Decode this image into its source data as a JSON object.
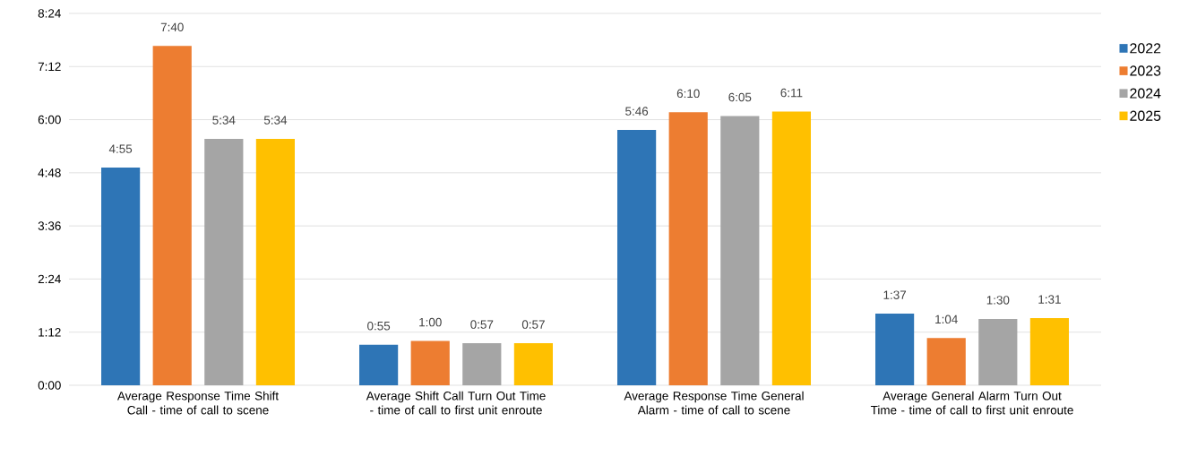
{
  "chart_data": {
    "type": "bar",
    "categories": [
      "Average Response Time Shift Call - time of call to scene",
      "Average Shift Call Turn Out Time - time of call to first unit enroute",
      "Average Response Time General Alarm - time of call to scene",
      "Average General Alarm Turn Out Time - time of call to first unit enroute"
    ],
    "series": [
      {
        "name": "2022",
        "color": "#2e75b6",
        "values": [
          295,
          55,
          346,
          97
        ],
        "value_labels": [
          "4:55",
          "0:55",
          "5:46",
          "1:37"
        ]
      },
      {
        "name": "2023",
        "color": "#ed7d31",
        "values": [
          460,
          60,
          370,
          64
        ],
        "value_labels": [
          "7:40",
          "1:00",
          "6:10",
          "1:04"
        ]
      },
      {
        "name": "2024",
        "color": "#a5a5a5",
        "values": [
          334,
          57,
          365,
          90
        ],
        "value_labels": [
          "5:34",
          "0:57",
          "6:05",
          "1:30"
        ]
      },
      {
        "name": "2025",
        "color": "#ffc000",
        "values": [
          334,
          57,
          371,
          91
        ],
        "value_labels": [
          "5:34",
          "0:57",
          "6:11",
          "1:31"
        ]
      }
    ],
    "ylim": [
      0,
      504
    ],
    "yticks": [
      {
        "value": 0,
        "label": "0:00"
      },
      {
        "value": 72,
        "label": "1:12"
      },
      {
        "value": 144,
        "label": "2:24"
      },
      {
        "value": 216,
        "label": "3:36"
      },
      {
        "value": 288,
        "label": "4:48"
      },
      {
        "value": 360,
        "label": "6:00"
      },
      {
        "value": 432,
        "label": "7:12"
      },
      {
        "value": 504,
        "label": "8:24"
      }
    ],
    "grid": "y",
    "legend": "right"
  }
}
